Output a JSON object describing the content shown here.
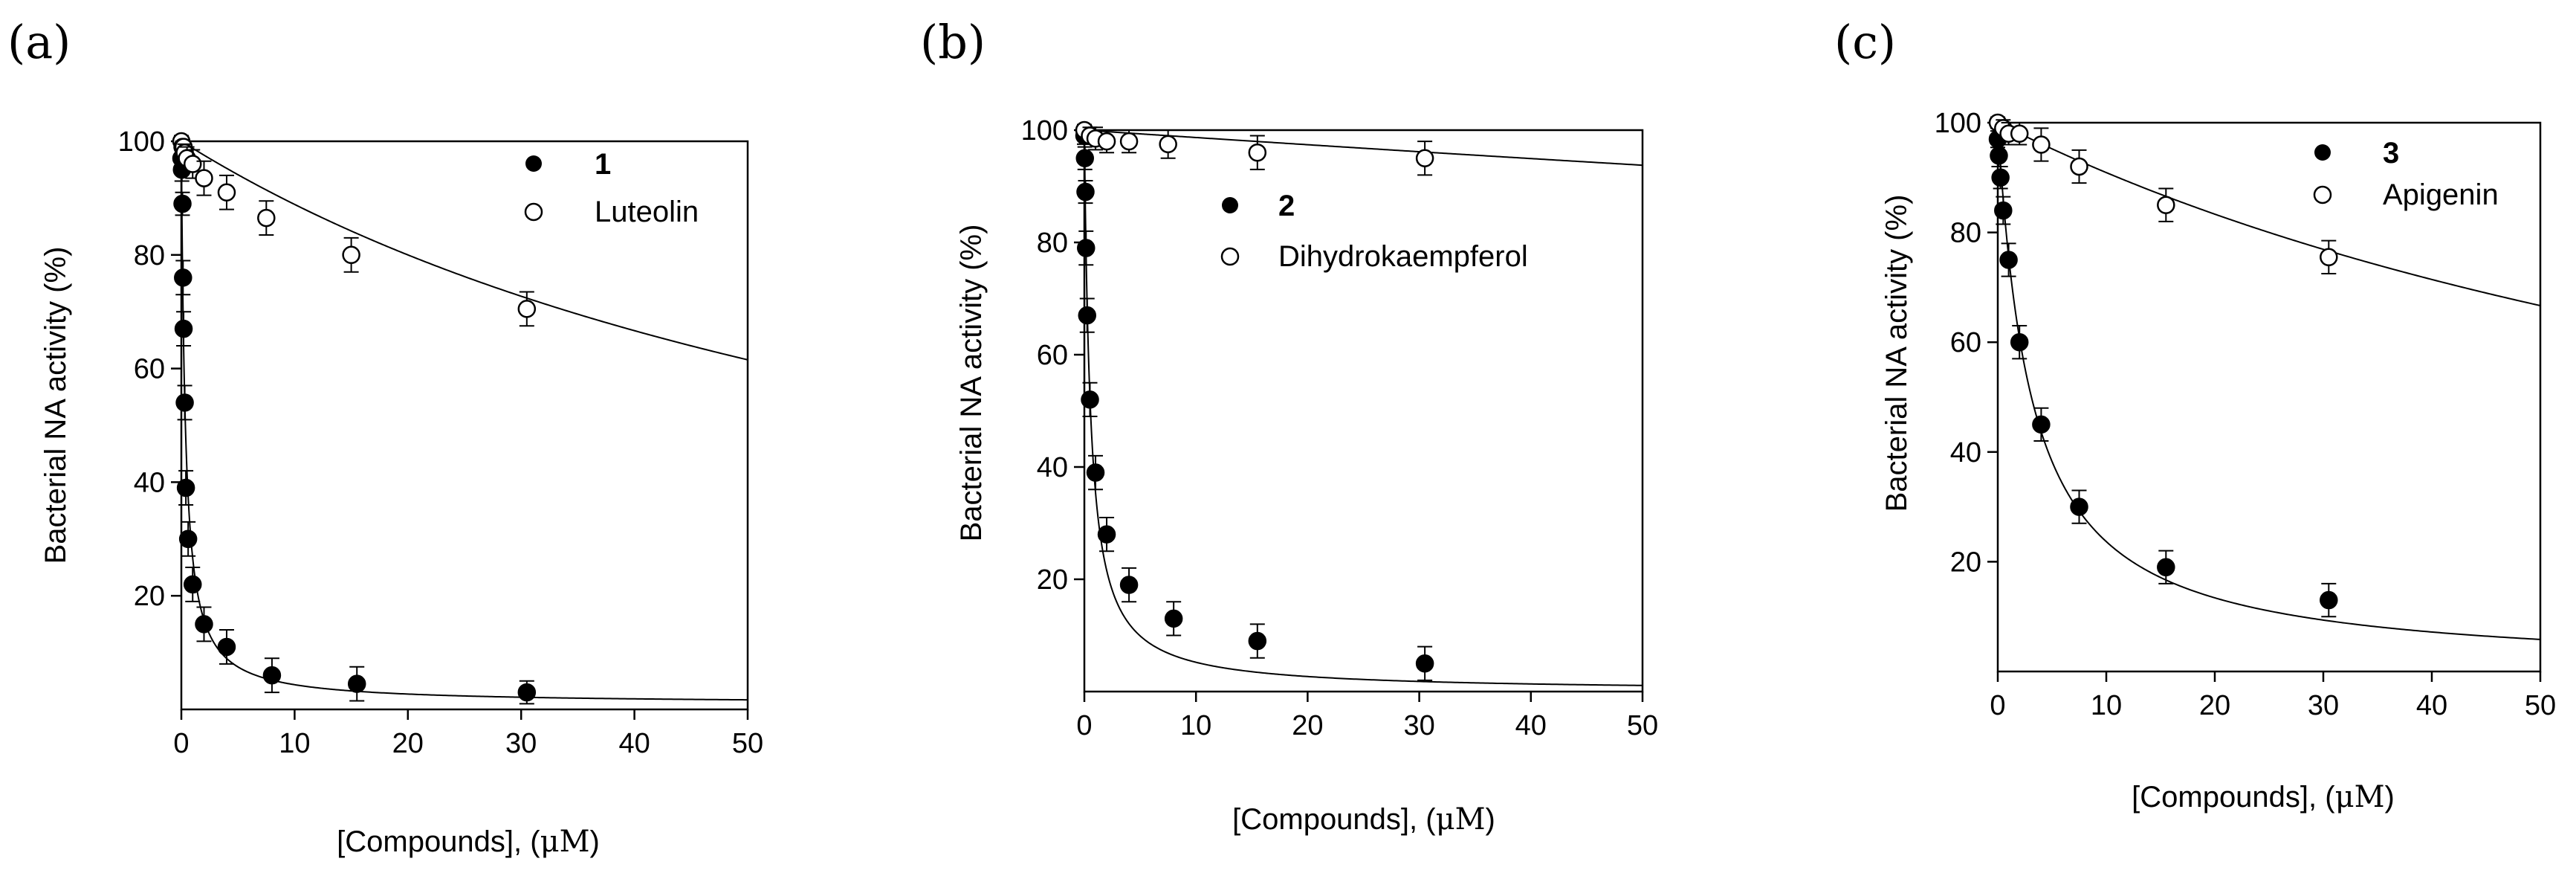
{
  "chart_data": [
    {
      "panel": "(a)",
      "type": "scatter",
      "xlabel_main": "[Compounds], (",
      "xlabel_unit": "μM",
      "xlabel_close": ")",
      "ylabel": "Bacterial NA activity (%)",
      "xlim": [
        0,
        50
      ],
      "ylim": [
        0,
        100
      ],
      "xticks": [
        0,
        10,
        20,
        30,
        40,
        50
      ],
      "yticks": [
        20,
        40,
        60,
        80,
        100
      ],
      "series": [
        {
          "name": "1",
          "marker": "filled",
          "x": [
            0,
            0.05,
            0.1,
            0.15,
            0.2,
            0.3,
            0.4,
            0.6,
            1,
            2,
            4,
            8,
            15.5,
            30.5
          ],
          "y": [
            97,
            95,
            89,
            76,
            67,
            54,
            39,
            30,
            22,
            15,
            11,
            6,
            4.5,
            3
          ],
          "err": [
            2,
            2,
            2,
            3,
            3,
            3,
            3,
            3,
            3,
            3,
            3,
            3,
            3,
            2
          ],
          "fit": {
            "kind": "hyperbolic",
            "ic50": 0.35,
            "plateau": 1,
            "top": 100
          }
        },
        {
          "name": "Luteolin",
          "marker": "open",
          "x": [
            0,
            0.1,
            0.2,
            0.3,
            0.5,
            1,
            2,
            4,
            7.5,
            15,
            30.5
          ],
          "y": [
            100,
            99,
            99,
            98,
            97,
            96,
            93.5,
            91,
            86.5,
            80,
            70.5
          ],
          "err": [
            1,
            1,
            1,
            1.5,
            2,
            2.5,
            3,
            3,
            3,
            3,
            3
          ],
          "fit": {
            "kind": "hyperbolic",
            "ic50": 80,
            "plateau": 0,
            "top": 100
          }
        }
      ],
      "legend": [
        {
          "label": "1",
          "marker": "filled",
          "bold": true
        },
        {
          "label": "Luteolin",
          "marker": "open",
          "bold": false
        }
      ]
    },
    {
      "panel": "(b)",
      "type": "scatter",
      "xlabel_main": "[Compounds], (",
      "xlabel_unit": "μM",
      "xlabel_close": ")",
      "ylabel": "Bacterial NA activity (%)",
      "xlim": [
        0,
        50
      ],
      "ylim": [
        0,
        100
      ],
      "xticks": [
        0,
        10,
        20,
        30,
        40,
        50
      ],
      "yticks": [
        20,
        40,
        60,
        80,
        100
      ],
      "series": [
        {
          "name": "2",
          "marker": "filled",
          "x": [
            0,
            0.05,
            0.1,
            0.15,
            0.25,
            0.5,
            1,
            2,
            4,
            8,
            15.5,
            30.5
          ],
          "y": [
            99,
            95,
            89,
            79,
            67,
            52,
            39,
            28,
            19,
            13,
            9,
            5
          ],
          "err": [
            1.5,
            2,
            2,
            3,
            3,
            3,
            3,
            3,
            3,
            3,
            3,
            3
          ],
          "fit": {
            "kind": "hyperbolic",
            "ic50": 0.55,
            "plateau": 0,
            "top": 100
          }
        },
        {
          "name": "Dihydrokaempferol",
          "marker": "open",
          "x": [
            0,
            0.5,
            1,
            2,
            4,
            7.5,
            15.5,
            30.5
          ],
          "y": [
            100,
            99,
            98.5,
            98,
            98,
            97.5,
            96,
            95
          ],
          "err": [
            1,
            1.5,
            2,
            2,
            2,
            2.5,
            3,
            3
          ],
          "fit": {
            "kind": "hyperbolic",
            "ic50": 750,
            "plateau": 0,
            "top": 100
          }
        }
      ],
      "legend": [
        {
          "label": "2",
          "marker": "filled",
          "bold": true
        },
        {
          "label": "Dihydrokaempferol",
          "marker": "open",
          "bold": false
        }
      ]
    },
    {
      "panel": "(c)",
      "type": "scatter",
      "xlabel_main": "[Compounds], (",
      "xlabel_unit": "μM",
      "xlabel_close": ")",
      "ylabel": "Bacterial NA activity (%)",
      "xlim": [
        0,
        50
      ],
      "ylim": [
        0,
        100
      ],
      "xticks": [
        0,
        10,
        20,
        30,
        40,
        50
      ],
      "yticks": [
        20,
        40,
        60,
        80,
        100
      ],
      "series": [
        {
          "name": "3",
          "marker": "filled",
          "x": [
            0,
            0.1,
            0.25,
            0.5,
            1,
            2,
            4,
            7.5,
            15.5,
            30.5
          ],
          "y": [
            97,
            94,
            90,
            84,
            75,
            60,
            45,
            30,
            19,
            13
          ],
          "err": [
            1.5,
            2,
            2,
            2.5,
            3,
            3,
            3,
            3,
            3,
            3
          ],
          "fit": {
            "kind": "hyperbolic",
            "ic50": 3.1,
            "plateau": 0,
            "top": 100
          }
        },
        {
          "name": "Apigenin",
          "marker": "open",
          "x": [
            0,
            0.5,
            1,
            2,
            4,
            7.5,
            15.5,
            30.5
          ],
          "y": [
            100,
            99,
            98,
            98,
            96,
            92,
            85,
            75.5
          ],
          "err": [
            1,
            1.5,
            2,
            2,
            3,
            3,
            3,
            3
          ],
          "fit": {
            "kind": "hyperbolic",
            "ic50": 100,
            "plateau": 0,
            "top": 100
          }
        }
      ],
      "legend": [
        {
          "label": "3",
          "marker": "filled",
          "bold": true
        },
        {
          "label": "Apigenin",
          "marker": "open",
          "bold": false
        }
      ]
    }
  ]
}
